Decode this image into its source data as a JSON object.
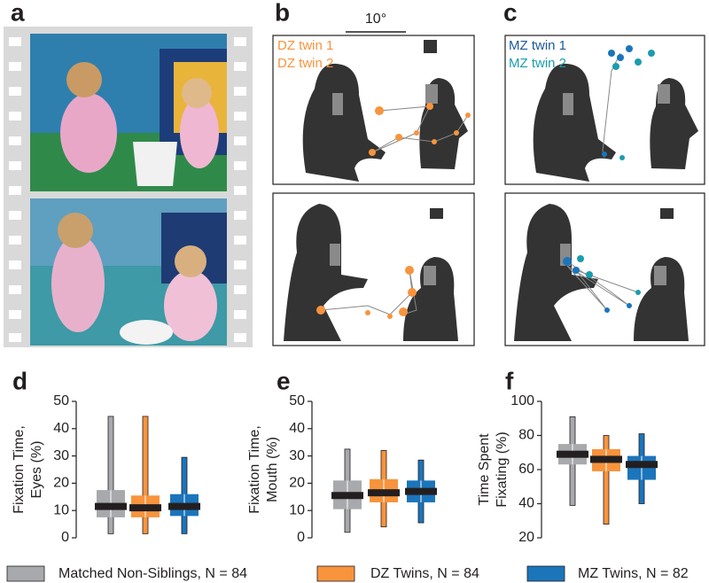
{
  "panel_labels": [
    "a",
    "b",
    "c",
    "d",
    "e",
    "f"
  ],
  "scale_label": "10°",
  "panel_b": {
    "legend": [
      "DZ twin 1",
      "DZ twin 2"
    ]
  },
  "panel_c": {
    "legend": [
      "MZ twin 1",
      "MZ twin 2"
    ]
  },
  "legend": [
    {
      "name": "Matched Non-Siblings, N = 84",
      "color": "#a7a9ac"
    },
    {
      "name": "DZ Twins, N = 84",
      "color": "#f7943d"
    },
    {
      "name": "MZ Twins, N = 82",
      "color": "#1b75bb"
    }
  ],
  "chart_data": [
    {
      "type": "box",
      "ylabel": [
        "Fixation Time,",
        "Eyes (%)"
      ],
      "ylim": [
        0,
        50
      ],
      "yticks": [
        0,
        10,
        20,
        30,
        40,
        50
      ],
      "median_color": "#231f20",
      "boxes": [
        {
          "min": 1.5,
          "q1": 7.5,
          "median": 11.5,
          "q3": 17.5,
          "max": 44.5
        },
        {
          "min": 1.5,
          "q1": 7.5,
          "median": 11,
          "q3": 15.5,
          "max": 44.5
        },
        {
          "min": 1.5,
          "q1": 8,
          "median": 11.5,
          "q3": 16,
          "max": 29.5
        }
      ]
    },
    {
      "type": "box",
      "ylabel": [
        "Fixation Time,",
        "Mouth (%)"
      ],
      "ylim": [
        0,
        50
      ],
      "yticks": [
        0,
        10,
        20,
        30,
        40,
        50
      ],
      "median_color": "#231f20",
      "boxes": [
        {
          "min": 2,
          "q1": 10.5,
          "median": 15.5,
          "q3": 21,
          "max": 32.5
        },
        {
          "min": 4,
          "q1": 13,
          "median": 16.5,
          "q3": 21.5,
          "max": 32
        },
        {
          "min": 5.5,
          "q1": 13,
          "median": 17,
          "q3": 21,
          "max": 28.5
        }
      ]
    },
    {
      "type": "box",
      "ylabel": [
        "Time Spent",
        "Fixating (%)"
      ],
      "ylim": [
        20,
        100
      ],
      "yticks": [
        20,
        40,
        60,
        80,
        100
      ],
      "median_color": "#231f20",
      "boxes": [
        {
          "min": 39,
          "q1": 63,
          "median": 69,
          "q3": 75,
          "max": 91
        },
        {
          "min": 28,
          "q1": 59,
          "median": 66,
          "q3": 72,
          "max": 80
        },
        {
          "min": 40,
          "q1": 54,
          "median": 63,
          "q3": 68,
          "max": 81
        }
      ]
    }
  ]
}
